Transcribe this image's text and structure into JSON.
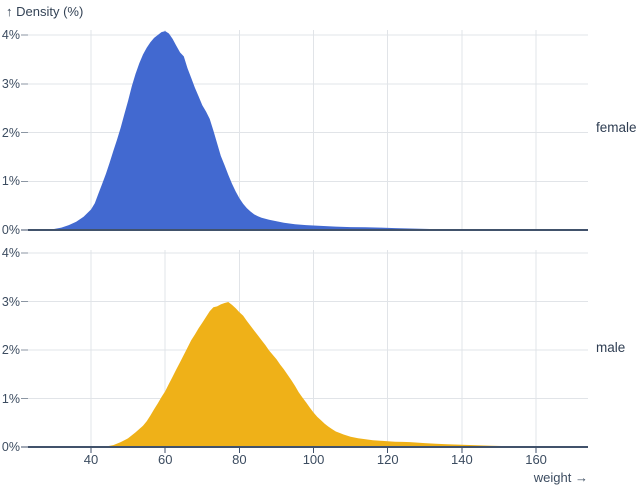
{
  "chart_data": {
    "type": "area",
    "title": "↑ Density (%)",
    "ylabel": "Density (%)",
    "xlabel": "weight →",
    "x_ticks": [
      40,
      60,
      80,
      100,
      120,
      140,
      160
    ],
    "y_ticks": [
      0,
      1,
      2,
      3,
      4
    ],
    "y_tick_suffix": "%",
    "xlim": [
      23,
      174
    ],
    "ylim": [
      0,
      4.1
    ],
    "grid": true,
    "facet_label_position": "right",
    "series": [
      {
        "name": "female",
        "color": "#4269d0",
        "peak": {
          "weight": 60,
          "density_pct": 4.08
        },
        "points": [
          [
            28,
            0
          ],
          [
            30,
            0.02
          ],
          [
            32,
            0.05
          ],
          [
            34,
            0.1
          ],
          [
            36,
            0.17
          ],
          [
            38,
            0.27
          ],
          [
            40,
            0.42
          ],
          [
            41,
            0.55
          ],
          [
            42,
            0.75
          ],
          [
            43,
            0.95
          ],
          [
            44,
            1.15
          ],
          [
            45,
            1.38
          ],
          [
            46,
            1.62
          ],
          [
            47,
            1.85
          ],
          [
            48,
            2.1
          ],
          [
            49,
            2.38
          ],
          [
            50,
            2.65
          ],
          [
            51,
            2.95
          ],
          [
            52,
            3.2
          ],
          [
            53,
            3.42
          ],
          [
            54,
            3.6
          ],
          [
            55,
            3.74
          ],
          [
            56,
            3.85
          ],
          [
            57,
            3.94
          ],
          [
            58,
            4.0
          ],
          [
            59,
            4.06
          ],
          [
            60,
            4.08
          ],
          [
            61,
            4.03
          ],
          [
            62,
            3.92
          ],
          [
            63,
            3.78
          ],
          [
            64,
            3.64
          ],
          [
            65,
            3.56
          ],
          [
            66,
            3.32
          ],
          [
            67,
            3.12
          ],
          [
            68,
            2.92
          ],
          [
            69,
            2.74
          ],
          [
            70,
            2.56
          ],
          [
            71,
            2.43
          ],
          [
            72,
            2.28
          ],
          [
            73,
            2.04
          ],
          [
            74,
            1.78
          ],
          [
            75,
            1.52
          ],
          [
            76,
            1.33
          ],
          [
            77,
            1.13
          ],
          [
            78,
            0.95
          ],
          [
            79,
            0.79
          ],
          [
            80,
            0.65
          ],
          [
            81,
            0.54
          ],
          [
            82,
            0.45
          ],
          [
            83,
            0.38
          ],
          [
            84,
            0.32
          ],
          [
            85,
            0.28
          ],
          [
            86,
            0.25
          ],
          [
            88,
            0.21
          ],
          [
            90,
            0.18
          ],
          [
            92,
            0.15
          ],
          [
            95,
            0.12
          ],
          [
            98,
            0.1
          ],
          [
            102,
            0.085
          ],
          [
            106,
            0.07
          ],
          [
            110,
            0.06
          ],
          [
            114,
            0.055
          ],
          [
            118,
            0.05
          ],
          [
            122,
            0.04
          ],
          [
            126,
            0.03
          ],
          [
            130,
            0.022
          ],
          [
            134,
            0.015
          ],
          [
            138,
            0.01
          ],
          [
            142,
            0.006
          ],
          [
            146,
            0.003
          ],
          [
            152,
            0.001
          ],
          [
            160,
            0
          ],
          [
            174,
            0
          ]
        ]
      },
      {
        "name": "male",
        "color": "#efb118",
        "peak": {
          "weight": 77,
          "density_pct": 2.99
        },
        "points": [
          [
            42,
            0
          ],
          [
            44,
            0.01
          ],
          [
            46,
            0.04
          ],
          [
            48,
            0.1
          ],
          [
            50,
            0.18
          ],
          [
            52,
            0.3
          ],
          [
            54,
            0.44
          ],
          [
            55,
            0.53
          ],
          [
            56,
            0.65
          ],
          [
            57,
            0.78
          ],
          [
            58,
            0.9
          ],
          [
            59,
            1.03
          ],
          [
            60,
            1.15
          ],
          [
            61,
            1.3
          ],
          [
            62,
            1.45
          ],
          [
            63,
            1.6
          ],
          [
            64,
            1.75
          ],
          [
            65,
            1.9
          ],
          [
            66,
            2.05
          ],
          [
            67,
            2.2
          ],
          [
            68,
            2.32
          ],
          [
            69,
            2.45
          ],
          [
            70,
            2.56
          ],
          [
            71,
            2.68
          ],
          [
            72,
            2.8
          ],
          [
            73,
            2.88
          ],
          [
            74,
            2.9
          ],
          [
            75,
            2.94
          ],
          [
            76,
            2.97
          ],
          [
            77,
            2.99
          ],
          [
            78,
            2.93
          ],
          [
            79,
            2.86
          ],
          [
            80,
            2.78
          ],
          [
            81,
            2.71
          ],
          [
            82,
            2.6
          ],
          [
            83,
            2.5
          ],
          [
            84,
            2.4
          ],
          [
            85,
            2.3
          ],
          [
            86,
            2.2
          ],
          [
            87,
            2.1
          ],
          [
            88,
            1.99
          ],
          [
            89,
            1.9
          ],
          [
            90,
            1.81
          ],
          [
            91,
            1.7
          ],
          [
            92,
            1.6
          ],
          [
            93,
            1.49
          ],
          [
            94,
            1.38
          ],
          [
            95,
            1.26
          ],
          [
            96,
            1.13
          ],
          [
            97,
            1.02
          ],
          [
            98,
            0.92
          ],
          [
            99,
            0.81
          ],
          [
            100,
            0.71
          ],
          [
            101,
            0.62
          ],
          [
            102,
            0.55
          ],
          [
            103,
            0.48
          ],
          [
            104,
            0.42
          ],
          [
            105,
            0.37
          ],
          [
            106,
            0.32
          ],
          [
            107,
            0.29
          ],
          [
            108,
            0.26
          ],
          [
            110,
            0.21
          ],
          [
            112,
            0.18
          ],
          [
            114,
            0.16
          ],
          [
            116,
            0.14
          ],
          [
            118,
            0.13
          ],
          [
            120,
            0.12
          ],
          [
            122,
            0.11
          ],
          [
            124,
            0.105
          ],
          [
            126,
            0.1
          ],
          [
            128,
            0.09
          ],
          [
            130,
            0.08
          ],
          [
            133,
            0.065
          ],
          [
            136,
            0.055
          ],
          [
            140,
            0.045
          ],
          [
            144,
            0.035
          ],
          [
            148,
            0.025
          ],
          [
            152,
            0.018
          ],
          [
            156,
            0.012
          ],
          [
            160,
            0.007
          ],
          [
            164,
            0.003
          ],
          [
            168,
            0.001
          ],
          [
            172,
            0
          ],
          [
            174,
            0
          ]
        ]
      }
    ]
  },
  "colors": {
    "female": "#4269d0",
    "male": "#efb118",
    "grid": "#e1e4e8",
    "axis": "#41526b",
    "tick": "#8b96a3",
    "text": "#3c4c60"
  }
}
